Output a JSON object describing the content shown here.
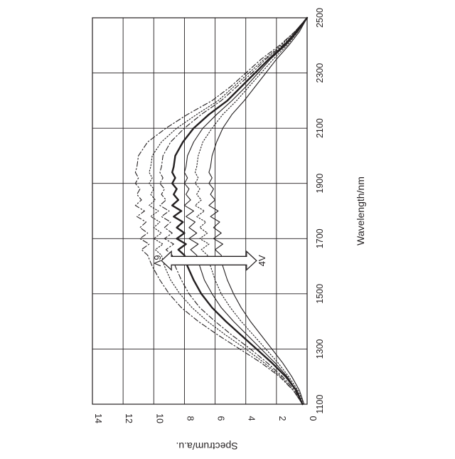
{
  "chart_data": {
    "type": "line",
    "orientation": "rotated-90-clockwise",
    "xlabel": "Wavelength/nm",
    "ylabel": "Spectrum/a.u.",
    "xlim": [
      1100,
      2500
    ],
    "ylim": [
      0,
      14
    ],
    "x_ticks": [
      "1100",
      "1300",
      "1500",
      "1700",
      "1900",
      "2100",
      "2300",
      "2500"
    ],
    "y_ticks": [
      "0",
      "2",
      "4",
      "6",
      "8",
      "10",
      "12",
      "14"
    ],
    "grid": true,
    "annotation": {
      "label_high": "6V",
      "label_low": "4V",
      "at_wavelength": 1620,
      "from_value": 9.5,
      "to_value": 3.3
    },
    "series": [
      {
        "style": "dash-dot",
        "x": [
          1100,
          1150,
          1200,
          1250,
          1300,
          1350,
          1400,
          1450,
          1500,
          1550,
          1600,
          1640,
          1660,
          1680,
          1700,
          1720,
          1740,
          1760,
          1780,
          1800,
          1820,
          1840,
          1860,
          1880,
          1900,
          1920,
          1940,
          1960,
          2000,
          2050,
          2100,
          2150,
          2200,
          2250,
          2300,
          2350,
          2400,
          2450,
          2500
        ],
        "y": [
          0.3,
          0.9,
          1.8,
          3.0,
          4.4,
          5.8,
          7.1,
          8.2,
          9.0,
          9.6,
          10.1,
          10.4,
          10.8,
          10.3,
          10.9,
          10.4,
          10.9,
          10.5,
          11.1,
          10.6,
          11.2,
          10.8,
          11.1,
          10.9,
          11.2,
          11.0,
          11.2,
          11.1,
          11.0,
          10.4,
          9.2,
          7.8,
          6.2,
          5.0,
          4.0,
          3.0,
          1.8,
          0.8,
          0.0
        ]
      },
      {
        "style": "dotted",
        "x": [
          1100,
          1150,
          1200,
          1250,
          1300,
          1350,
          1400,
          1450,
          1500,
          1550,
          1600,
          1640,
          1660,
          1680,
          1700,
          1720,
          1740,
          1760,
          1780,
          1800,
          1820,
          1840,
          1860,
          1880,
          1900,
          1920,
          1940,
          1960,
          2000,
          2050,
          2100,
          2150,
          2200,
          2250,
          2300,
          2350,
          2400,
          2450,
          2500
        ],
        "y": [
          0.3,
          0.9,
          1.7,
          2.8,
          4.0,
          5.3,
          6.5,
          7.5,
          8.3,
          8.9,
          9.3,
          9.5,
          9.9,
          9.4,
          10.0,
          9.5,
          10.0,
          9.6,
          10.2,
          9.7,
          10.3,
          9.9,
          10.2,
          10.0,
          10.3,
          10.1,
          10.3,
          10.2,
          10.1,
          9.5,
          8.5,
          7.2,
          5.8,
          4.8,
          3.8,
          2.8,
          1.7,
          0.8,
          0.0
        ]
      },
      {
        "style": "dash-dot",
        "x": [
          1100,
          1150,
          1200,
          1250,
          1300,
          1350,
          1400,
          1450,
          1500,
          1550,
          1600,
          1640,
          1660,
          1680,
          1700,
          1720,
          1740,
          1760,
          1780,
          1800,
          1820,
          1840,
          1860,
          1880,
          1900,
          1920,
          1940,
          1960,
          2000,
          2050,
          2100,
          2150,
          2200,
          2250,
          2300,
          2350,
          2400,
          2450,
          2500
        ],
        "y": [
          0.3,
          0.8,
          1.6,
          2.6,
          3.7,
          4.9,
          6.0,
          7.0,
          7.7,
          8.2,
          8.6,
          8.8,
          9.2,
          8.7,
          9.3,
          8.8,
          9.3,
          8.9,
          9.5,
          9.0,
          9.6,
          9.2,
          9.5,
          9.3,
          9.6,
          9.4,
          9.6,
          9.5,
          9.4,
          8.9,
          8.0,
          6.9,
          5.6,
          4.6,
          3.6,
          2.7,
          1.6,
          0.7,
          0.0
        ]
      },
      {
        "style": "solid-bold",
        "x": [
          1100,
          1150,
          1200,
          1250,
          1300,
          1350,
          1400,
          1450,
          1500,
          1550,
          1600,
          1640,
          1660,
          1680,
          1700,
          1720,
          1740,
          1760,
          1780,
          1800,
          1820,
          1840,
          1860,
          1880,
          1900,
          1920,
          1940,
          1960,
          2000,
          2050,
          2100,
          2150,
          2200,
          2250,
          2300,
          2350,
          2400,
          2450,
          2500
        ],
        "y": [
          0.3,
          0.7,
          1.4,
          2.3,
          3.3,
          4.3,
          5.3,
          6.2,
          6.9,
          7.4,
          7.8,
          8.0,
          8.4,
          7.9,
          8.5,
          8.0,
          8.5,
          8.1,
          8.7,
          8.2,
          8.8,
          8.4,
          8.7,
          8.5,
          8.8,
          8.6,
          8.8,
          8.7,
          8.6,
          8.1,
          7.4,
          6.4,
          5.2,
          4.3,
          3.4,
          2.5,
          1.5,
          0.7,
          0.0
        ]
      },
      {
        "style": "solid",
        "x": [
          1100,
          1150,
          1200,
          1250,
          1300,
          1350,
          1400,
          1450,
          1500,
          1550,
          1600,
          1640,
          1660,
          1680,
          1700,
          1720,
          1740,
          1760,
          1780,
          1800,
          1820,
          1840,
          1860,
          1880,
          1900,
          1920,
          1940,
          1960,
          2000,
          2050,
          2100,
          2150,
          2200,
          2250,
          2300,
          2350,
          2400,
          2450,
          2500
        ],
        "y": [
          0.3,
          0.7,
          1.3,
          2.1,
          3.0,
          3.9,
          4.8,
          5.6,
          6.2,
          6.7,
          7.0,
          7.2,
          7.6,
          7.1,
          7.7,
          7.2,
          7.7,
          7.3,
          7.9,
          7.4,
          8.0,
          7.6,
          7.9,
          7.7,
          8.0,
          7.8,
          8.0,
          7.9,
          7.8,
          7.4,
          6.8,
          5.9,
          4.9,
          4.0,
          3.2,
          2.4,
          1.4,
          0.6,
          0.0
        ]
      },
      {
        "style": "dotted",
        "x": [
          1100,
          1150,
          1200,
          1250,
          1300,
          1350,
          1400,
          1450,
          1500,
          1550,
          1600,
          1640,
          1660,
          1680,
          1700,
          1720,
          1740,
          1760,
          1780,
          1800,
          1820,
          1840,
          1860,
          1880,
          1900,
          1920,
          1940,
          1960,
          2000,
          2050,
          2100,
          2150,
          2200,
          2250,
          2300,
          2350,
          2400,
          2450,
          2500
        ],
        "y": [
          0.2,
          0.6,
          1.2,
          1.9,
          2.7,
          3.5,
          4.3,
          5.0,
          5.6,
          6.0,
          6.3,
          6.5,
          6.9,
          6.4,
          7.0,
          6.5,
          7.0,
          6.6,
          7.2,
          6.7,
          7.3,
          6.9,
          7.2,
          7.0,
          7.3,
          7.1,
          7.3,
          7.2,
          7.1,
          6.8,
          6.2,
          5.5,
          4.6,
          3.8,
          3.0,
          2.2,
          1.3,
          0.6,
          0.0
        ]
      },
      {
        "style": "solid",
        "x": [
          1100,
          1150,
          1200,
          1250,
          1300,
          1350,
          1400,
          1450,
          1500,
          1550,
          1600,
          1640,
          1660,
          1680,
          1700,
          1720,
          1740,
          1760,
          1780,
          1800,
          1820,
          1840,
          1860,
          1880,
          1900,
          1920,
          1940,
          1960,
          2000,
          2050,
          2100,
          2150,
          2200,
          2250,
          2300,
          2350,
          2400,
          2450,
          2500
        ],
        "y": [
          0.2,
          0.5,
          1.0,
          1.6,
          2.3,
          3.0,
          3.7,
          4.3,
          4.8,
          5.2,
          5.5,
          5.6,
          6.0,
          5.5,
          6.1,
          5.6,
          6.1,
          5.7,
          6.3,
          5.8,
          6.4,
          6.0,
          6.3,
          6.1,
          6.4,
          6.2,
          6.4,
          6.3,
          6.2,
          5.9,
          5.5,
          4.9,
          4.1,
          3.4,
          2.7,
          2.0,
          1.2,
          0.5,
          0.0
        ]
      }
    ]
  }
}
